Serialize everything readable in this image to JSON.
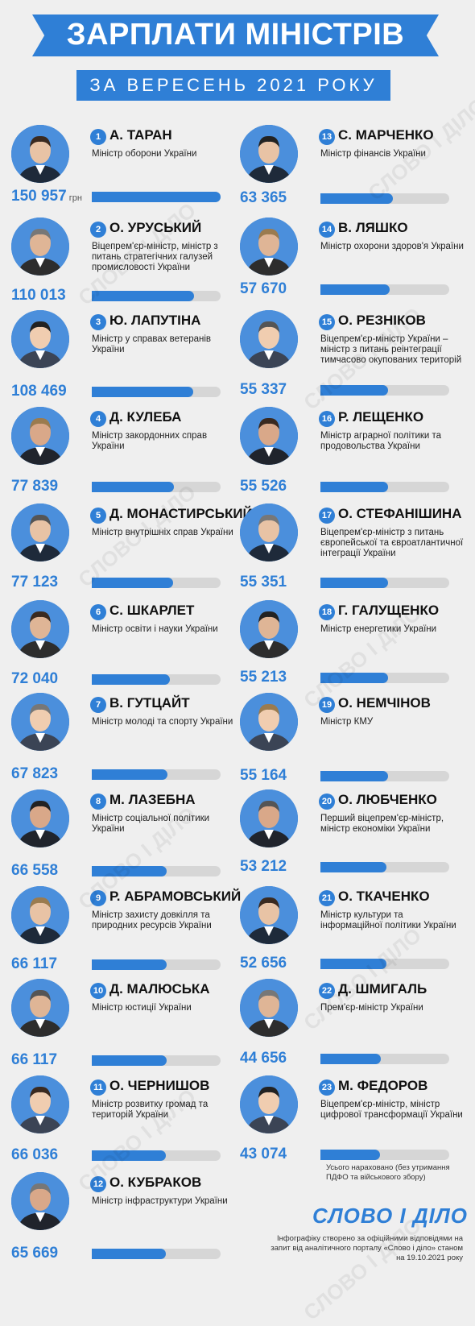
{
  "header": {
    "title": "ЗАРПЛАТИ МІНІСТРІВ",
    "subtitle": "ЗА ВЕРЕСЕНЬ 2021 РОКУ"
  },
  "colors": {
    "accent": "#2f7fd6",
    "track": "#d6d6d6",
    "background": "#efefef"
  },
  "watermark_text": "СЛОВО І ДІЛО",
  "chart_data": {
    "type": "bar",
    "unit": "грн",
    "max": 150957,
    "ministers": [
      {
        "rank": "1",
        "name": "А. ТАРАН",
        "role": "Міністр оборони України",
        "salary": "150 957",
        "value": 150957
      },
      {
        "rank": "2",
        "name": "О. УРУСЬКИЙ",
        "role": "Віцепрем'єр-міністр, міністр з питань стратегічних галузей промисловості України",
        "salary": "110 013",
        "value": 110013
      },
      {
        "rank": "3",
        "name": "Ю. ЛАПУТІНА",
        "role": "Міністр у справах ветеранів України",
        "salary": "108 469",
        "value": 108469
      },
      {
        "rank": "4",
        "name": "Д. КУЛЕБА",
        "role": "Міністр закордонних справ України",
        "salary": "77 839",
        "value": 77839
      },
      {
        "rank": "5",
        "name": "Д. МОНАСТИРСЬКИЙ",
        "role": "Міністр внутрішніх справ України",
        "salary": "77 123",
        "value": 77123
      },
      {
        "rank": "6",
        "name": "С. ШКАРЛЕТ",
        "role": "Міністр освіти і науки України",
        "salary": "72 040",
        "value": 72040
      },
      {
        "rank": "7",
        "name": "В. ГУТЦАЙТ",
        "role": "Міністр молоді та спорту України",
        "salary": "67 823",
        "value": 67823
      },
      {
        "rank": "8",
        "name": "М. ЛАЗЕБНА",
        "role": "Міністр соціальної політики України",
        "salary": "66 558",
        "value": 66558
      },
      {
        "rank": "9",
        "name": "Р. АБРАМОВСЬКИЙ",
        "role": "Міністр захисту довкілля та природних ресурсів України",
        "salary": "66 117",
        "value": 66117
      },
      {
        "rank": "10",
        "name": "Д. МАЛЮСЬКА",
        "role": "Міністр юстиції України",
        "salary": "66 117",
        "value": 66117
      },
      {
        "rank": "11",
        "name": "О. ЧЕРНИШОВ",
        "role": "Міністр розвитку громад та територій України",
        "salary": "66 036",
        "value": 66036
      },
      {
        "rank": "12",
        "name": "О. КУБРАКОВ",
        "role": "Міністр інфраструктури України",
        "salary": "65 669",
        "value": 65669
      },
      {
        "rank": "13",
        "name": "С. МАРЧЕНКО",
        "role": "Міністр фінансів України",
        "salary": "63 365",
        "value": 63365
      },
      {
        "rank": "14",
        "name": "В. ЛЯШКО",
        "role": "Міністр охорони здоров'я України",
        "salary": "57 670",
        "value": 57670
      },
      {
        "rank": "15",
        "name": "О. РЕЗНІКОВ",
        "role": "Віцепрем'єр-міністр України – міністр з питань реінтеграції тимчасово окупованих територій",
        "salary": "55 337",
        "value": 55337
      },
      {
        "rank": "16",
        "name": "Р. ЛЕЩЕНКО",
        "role": "Міністр аграрної політики та продовольства України",
        "salary": "55 526",
        "value": 55526
      },
      {
        "rank": "17",
        "name": "О. СТЕФАНІШИНА",
        "role": "Віцепрем'єр-міністр з питань європейської та євроатлантичної інтеграції України",
        "salary": "55 351",
        "value": 55351
      },
      {
        "rank": "18",
        "name": "Г. ГАЛУЩЕНКО",
        "role": "Міністр енергетики України",
        "salary": "55 213",
        "value": 55213
      },
      {
        "rank": "19",
        "name": "О. НЕМЧІНОВ",
        "role": "Міністр КМУ",
        "salary": "55 164",
        "value": 55164
      },
      {
        "rank": "20",
        "name": "О. ЛЮБЧЕНКО",
        "role": "Перший віцепрем'єр-міністр, міністр економіки України",
        "salary": "53 212",
        "value": 53212
      },
      {
        "rank": "21",
        "name": "О. ТКАЧЕНКО",
        "role": "Міністр культури та інформаційної політики України",
        "salary": "52 656",
        "value": 52656
      },
      {
        "rank": "22",
        "name": "Д. ШМИГАЛЬ",
        "role": "Прем'єр-міністр України",
        "salary": "44 656",
        "value": 44656
      },
      {
        "rank": "23",
        "name": "М. ФЕДОРОВ",
        "role": "Віцепрем'єр-міністр, міністр цифрової трансформації України",
        "salary": "43 074",
        "value": 43074
      }
    ]
  },
  "footer": {
    "note": "Усього нараховано (без утримання ПДФО та військового збору)",
    "logo": "СЛОВО І ДІЛО",
    "source": "Інфографіку створено за офіційними відповідями на запит від аналітичного порталу «Слово і діло» станом на 19.10.2021 року"
  }
}
